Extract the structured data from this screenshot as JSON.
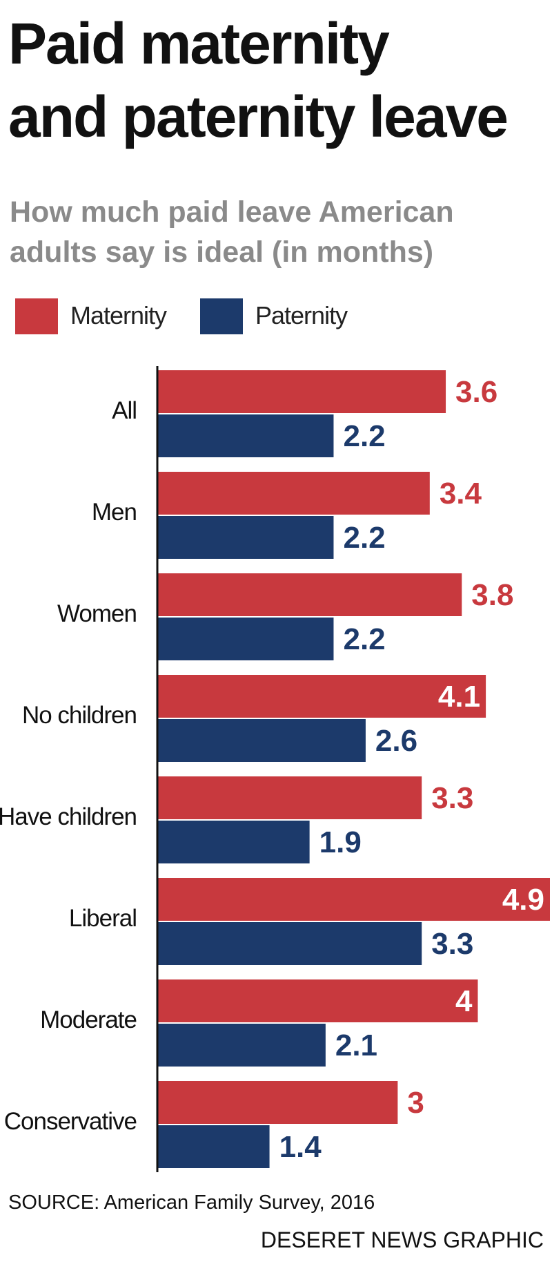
{
  "title_line1": "Paid maternity",
  "title_line2": "and paternity leave",
  "subtitle_line1": "How much paid leave American",
  "subtitle_line2": "adults say is ideal (in months)",
  "legend": [
    {
      "label": "Maternity",
      "color": "#c8393e"
    },
    {
      "label": "Paternity",
      "color": "#1c3a6b"
    }
  ],
  "chart_data": {
    "type": "bar",
    "orientation": "horizontal",
    "title": "Paid maternity and paternity leave",
    "subtitle": "How much paid leave American adults say is ideal (in months)",
    "categories": [
      "All",
      "Men",
      "Women",
      "No children",
      "Have children",
      "Liberal",
      "Moderate",
      "Conservative"
    ],
    "series": [
      {
        "name": "Maternity",
        "color": "#c8393e",
        "values": [
          3.6,
          3.4,
          3.8,
          4.1,
          3.3,
          4.9,
          4,
          3
        ],
        "labels": [
          "3.6",
          "3.4",
          "3.8",
          "4.1",
          "3.3",
          "4.9",
          "4",
          "3"
        ]
      },
      {
        "name": "Paternity",
        "color": "#1c3a6b",
        "values": [
          2.2,
          2.2,
          2.2,
          2.6,
          1.9,
          3.3,
          2.1,
          1.4
        ],
        "labels": [
          "2.2",
          "2.2",
          "2.2",
          "2.6",
          "1.9",
          "3.3",
          "2.1",
          "1.4"
        ]
      }
    ],
    "xlim": [
      0,
      4.9
    ],
    "grid": false,
    "legend_position": "top-left",
    "label_color_inside_bar": "#ffffff"
  },
  "source": "SOURCE: American Family Survey, 2016",
  "credit": "DESERET NEWS GRAPHIC"
}
